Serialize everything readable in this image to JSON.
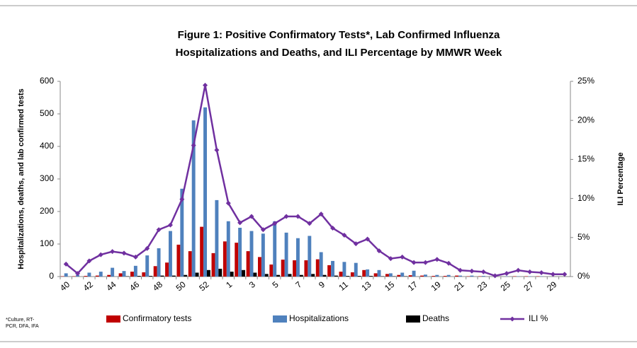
{
  "chart_data": {
    "type": "bar",
    "title": [
      "Figure 1: Positive Confirmatory Tests*, Lab Confirmed Influenza",
      "Hospitalizations and Deaths, and ILI Percentage by MMWR Week"
    ],
    "ylabel": "Hospitalizations,  deaths, and lab confirmed tests",
    "y2label": "ILI Percentage",
    "footnote": [
      "*Culture, RT-",
      "PCR, DFA, IFA"
    ],
    "categories": [
      "40",
      null,
      "42",
      null,
      "44",
      null,
      "46",
      null,
      "48",
      null,
      "50",
      null,
      "52",
      null,
      "1",
      null,
      "3",
      null,
      "5",
      null,
      "7",
      null,
      "9",
      null,
      "11",
      null,
      "13",
      null,
      "15",
      null,
      "17",
      null,
      "19",
      null,
      "21",
      null,
      "23",
      null,
      "25",
      null,
      "27",
      null,
      "29",
      null
    ],
    "series": [
      {
        "name": "Confirmatory tests",
        "color": "#c00000",
        "values": [
          1,
          1,
          2,
          3,
          5,
          10,
          15,
          13,
          32,
          43,
          98,
          78,
          153,
          72,
          108,
          104,
          78,
          60,
          37,
          52,
          50,
          50,
          53,
          35,
          15,
          13,
          20,
          10,
          8,
          5,
          4,
          3,
          2,
          2,
          3,
          1,
          1,
          0,
          0,
          1,
          1,
          1,
          0,
          0
        ]
      },
      {
        "name": "Hospitalizations",
        "color": "#4f81bd",
        "values": [
          10,
          5,
          12,
          15,
          27,
          17,
          33,
          65,
          87,
          140,
          270,
          480,
          520,
          235,
          170,
          150,
          140,
          132,
          170,
          135,
          118,
          125,
          75,
          48,
          45,
          42,
          22,
          20,
          10,
          12,
          18,
          6,
          5,
          5,
          3,
          3,
          2,
          2,
          1,
          1,
          1,
          1,
          0,
          0
        ]
      },
      {
        "name": "Deaths",
        "color": "#000000",
        "values": [
          0,
          0,
          0,
          0,
          0,
          1,
          2,
          2,
          3,
          3,
          5,
          12,
          20,
          24,
          15,
          20,
          12,
          8,
          5,
          8,
          5,
          8,
          5,
          3,
          2,
          2,
          2,
          1,
          1,
          1,
          0,
          0,
          0,
          0,
          0,
          0,
          0,
          0,
          0,
          0,
          0,
          0,
          0,
          0
        ]
      },
      {
        "name": "ILI %",
        "color": "#7030a0",
        "type": "line",
        "axis": "y2",
        "values": [
          1.6,
          0.4,
          2.0,
          2.8,
          3.2,
          3.0,
          2.5,
          3.6,
          6.0,
          6.6,
          9.9,
          16.8,
          24.5,
          16.2,
          9.4,
          6.9,
          7.7,
          6.0,
          6.8,
          7.7,
          7.7,
          6.8,
          8.0,
          6.2,
          5.3,
          4.2,
          4.8,
          3.3,
          2.3,
          2.5,
          1.8,
          1.8,
          2.2,
          1.7,
          0.8,
          0.7,
          0.6,
          0.1,
          0.4,
          0.8,
          0.6,
          0.5,
          0.3,
          0.3
        ]
      }
    ],
    "ylim": [
      0,
      600
    ],
    "yticks": [
      0,
      100,
      200,
      300,
      400,
      500,
      600
    ],
    "y2lim": [
      0,
      25
    ],
    "y2ticks": [
      {
        "value": 0,
        "label": "0%"
      },
      {
        "value": 5,
        "label": "5%"
      },
      {
        "value": 10,
        "label": "10%"
      },
      {
        "value": 15,
        "label": "15%"
      },
      {
        "value": 20,
        "label": "20%"
      },
      {
        "value": 25,
        "label": "25%"
      }
    ]
  }
}
